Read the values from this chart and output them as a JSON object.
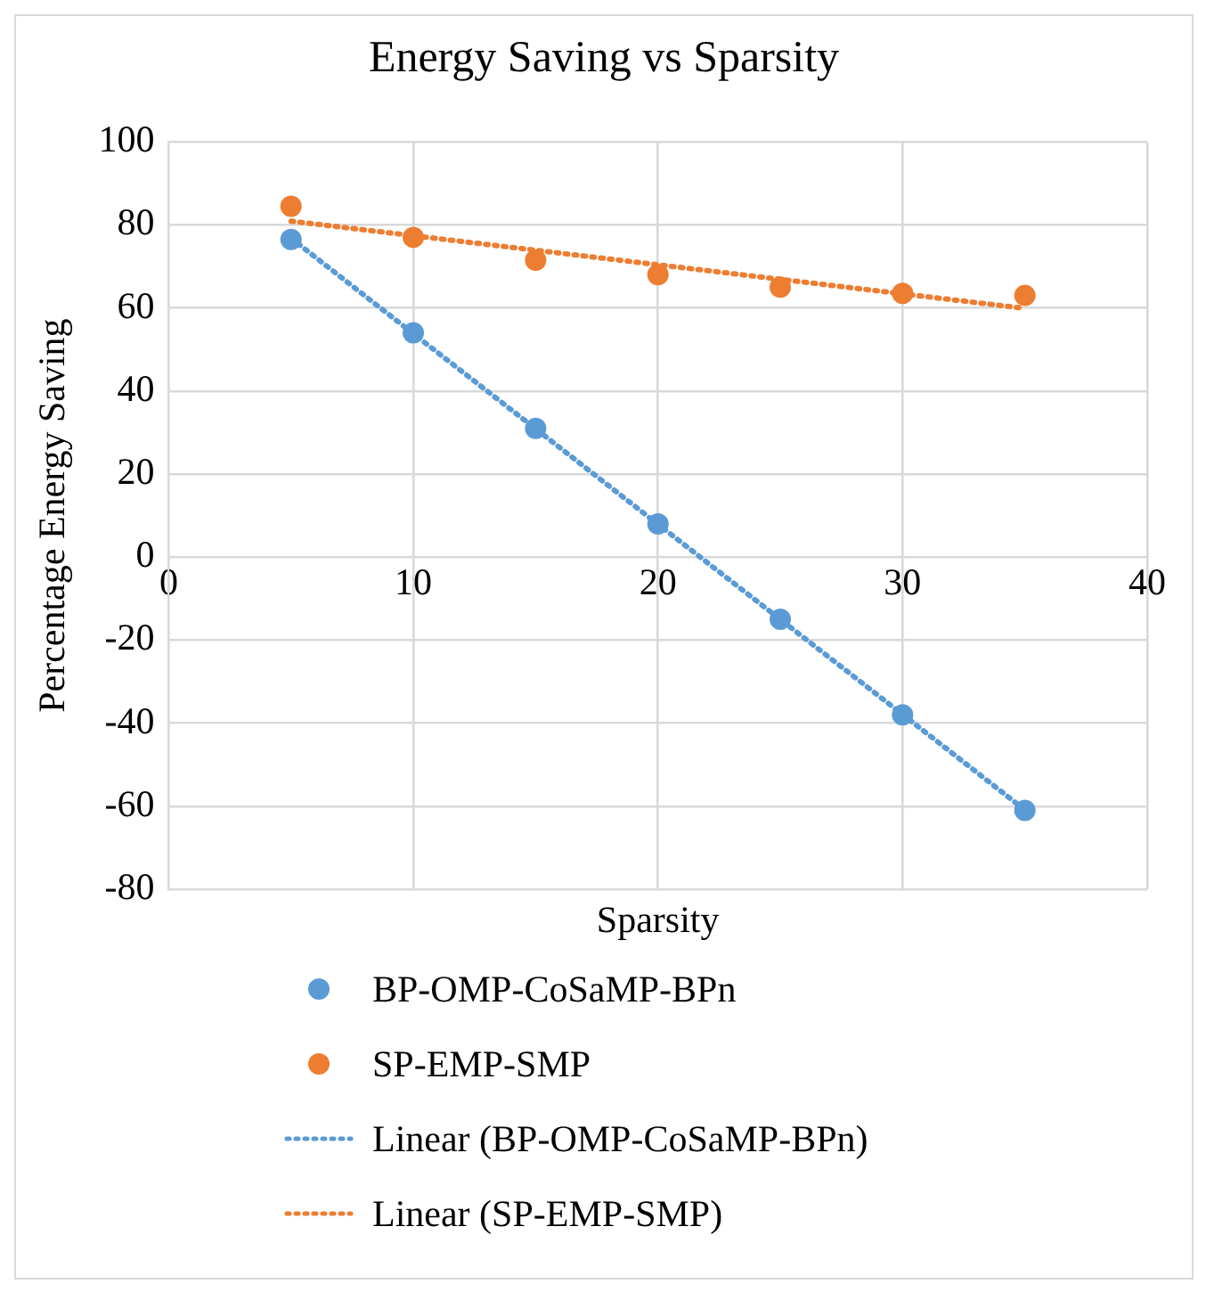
{
  "chart_data": {
    "type": "scatter",
    "title": "Energy Saving vs Sparsity",
    "xlabel": "Sparsity",
    "ylabel": "Percentage Energy Saving",
    "x": [
      5,
      10,
      15,
      20,
      25,
      30,
      35
    ],
    "series": [
      {
        "name": "BP-OMP-CoSaMP-BPn",
        "color": "#5b9bd5",
        "values": [
          76.5,
          54,
          31,
          8,
          -15,
          -38,
          -61
        ]
      },
      {
        "name": "SP-EMP-SMP",
        "color": "#ed7d31",
        "values": [
          84.5,
          77,
          71.5,
          68,
          65,
          63.5,
          63
        ]
      },
      {
        "name": "Linear (BP-OMP-CoSaMP-BPn)",
        "type": "line",
        "color": "#5b9bd5",
        "values": [
          76.8,
          53.8,
          30.9,
          7.9,
          -15,
          -37.9,
          -60.9
        ],
        "marker": "none",
        "line_style": "dotted"
      },
      {
        "name": "Linear (SP-EMP-SMP)",
        "type": "line",
        "color": "#ed7d31",
        "values": [
          80.9,
          77.4,
          73.9,
          70.4,
          66.9,
          63.4,
          59.9
        ],
        "marker": "none",
        "line_style": "dotted"
      }
    ],
    "marker": "circle",
    "xlim": [
      0,
      40
    ],
    "xticks": [
      0,
      10,
      20,
      30,
      40
    ],
    "ylim": [
      -80,
      100
    ],
    "yticks": [
      -80,
      -60,
      -40,
      -20,
      0,
      20,
      40,
      60,
      80,
      100
    ],
    "grid": true,
    "legend": "bottom"
  }
}
